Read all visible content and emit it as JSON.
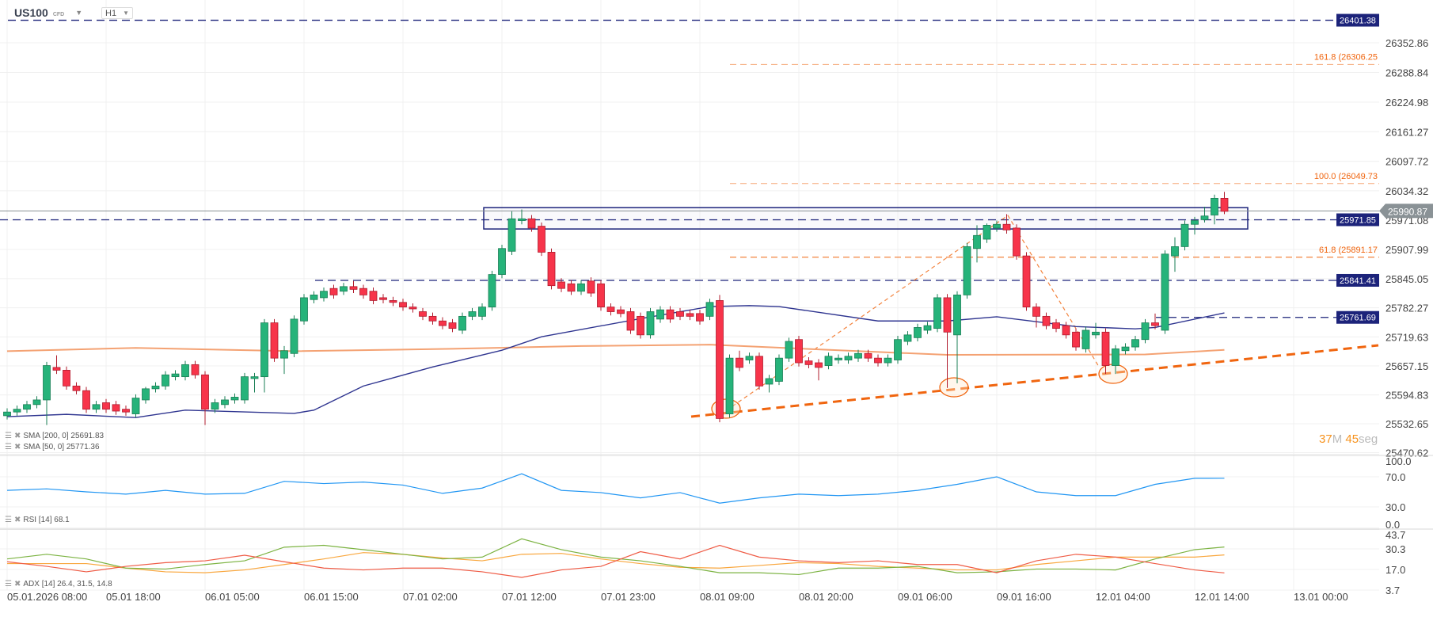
{
  "header": {
    "symbol": "US100",
    "symbol_type": "CFD",
    "timeframe": "H1"
  },
  "timer": {
    "minutes": "37",
    "minutes_unit": "M",
    "seconds": "45",
    "seconds_unit": "seg"
  },
  "indicators": {
    "sma200": "SMA [200, 0] 25691.83",
    "sma50": "SMA [50, 0] 25771.36",
    "rsi": "RSI [14] 68.1",
    "adx": "ADX [14] 26.4, 31.5, 14.8"
  },
  "colors": {
    "bull": "#26b37a",
    "bear": "#f7344a",
    "sma50": "#2f3590",
    "sma200": "#f4a273",
    "fib": "#f0650f",
    "level": "#1c237a",
    "rsi": "#2196f3",
    "adx": "#f9a73e",
    "plus_di": "#7cb342",
    "minus_di": "#ef5b45"
  },
  "chart_data": [
    {
      "type": "candlestick",
      "price_axis": {
        "ticks": [
          26352.86,
          26288.84,
          26224.98,
          26161.27,
          26097.72,
          26034.32,
          25971.08,
          25907.99,
          25845.05,
          25782.27,
          25719.63,
          25657.15,
          25594.83,
          25532.65,
          25470.62
        ]
      },
      "time_axis": {
        "ticks": [
          "05.01.2026  08:00",
          "05.01  18:00",
          "06.01  05:00",
          "06.01  15:00",
          "07.01  02:00",
          "07.01  12:00",
          "07.01  23:00",
          "08.01  09:00",
          "08.01  20:00",
          "09.01  06:00",
          "09.01  16:00",
          "12.01  04:00",
          "12.01  14:00",
          "13.01  00:00"
        ]
      },
      "current_price": "25990.87",
      "levels": [
        {
          "label": "26401.38",
          "price": 26401.38
        },
        {
          "label": "25971.85",
          "price": 25971.85
        },
        {
          "label": "25841.41",
          "price": 25841.41
        },
        {
          "label": "25761.69",
          "price": 25761.69
        }
      ],
      "fib": [
        {
          "label": "161.8 (26306.25",
          "price": 26306.25
        },
        {
          "label": "100.0 (26049.73",
          "price": 26049.73
        },
        {
          "label": "61.8 (25891.17",
          "price": 25891.17
        }
      ],
      "ohlc": [
        [
          25550,
          25566,
          25542,
          25558
        ],
        [
          25558,
          25572,
          25550,
          25564
        ],
        [
          25564,
          25582,
          25556,
          25574
        ],
        [
          25574,
          25592,
          25566,
          25584
        ],
        [
          25584,
          25666,
          25530,
          25658
        ],
        [
          25654,
          25680,
          25640,
          25648
        ],
        [
          25648,
          25656,
          25606,
          25614
        ],
        [
          25614,
          25622,
          25596,
          25604
        ],
        [
          25604,
          25612,
          25556,
          25564
        ],
        [
          25564,
          25582,
          25556,
          25574
        ],
        [
          25578,
          25586,
          25556,
          25564
        ],
        [
          25574,
          25582,
          25552,
          25560
        ],
        [
          25564,
          25572,
          25550,
          25558
        ],
        [
          25554,
          25596,
          25546,
          25588
        ],
        [
          25584,
          25612,
          25576,
          25608
        ],
        [
          25608,
          25622,
          25600,
          25614
        ],
        [
          25614,
          25646,
          25606,
          25638
        ],
        [
          25634,
          25648,
          25626,
          25640
        ],
        [
          25634,
          25668,
          25626,
          25660
        ],
        [
          25660,
          25668,
          25630,
          25638
        ],
        [
          25638,
          25646,
          25530,
          25564
        ],
        [
          25564,
          25586,
          25556,
          25578
        ],
        [
          25574,
          25592,
          25566,
          25584
        ],
        [
          25584,
          25598,
          25576,
          25590
        ],
        [
          25584,
          25642,
          25576,
          25634
        ],
        [
          25630,
          25642,
          25600,
          25634
        ],
        [
          25634,
          25758,
          25600,
          25750
        ],
        [
          25750,
          25758,
          25666,
          25674
        ],
        [
          25674,
          25700,
          25640,
          25690
        ],
        [
          25684,
          25766,
          25676,
          25758
        ],
        [
          25754,
          25812,
          25746,
          25804
        ],
        [
          25800,
          25818,
          25792,
          25810
        ],
        [
          25804,
          25826,
          25796,
          25818
        ],
        [
          25824,
          25832,
          25802,
          25810
        ],
        [
          25818,
          25836,
          25810,
          25828
        ],
        [
          25828,
          25840,
          25814,
          25822
        ],
        [
          25824,
          25832,
          25802,
          25810
        ],
        [
          25818,
          25826,
          25790,
          25798
        ],
        [
          25804,
          25812,
          25792,
          25800
        ],
        [
          25798,
          25806,
          25786,
          25794
        ],
        [
          25794,
          25802,
          25776,
          25784
        ],
        [
          25784,
          25792,
          25772,
          25780
        ],
        [
          25774,
          25782,
          25756,
          25764
        ],
        [
          25764,
          25772,
          25746,
          25754
        ],
        [
          25754,
          25762,
          25736,
          25744
        ],
        [
          25750,
          25758,
          25730,
          25738
        ],
        [
          25734,
          25772,
          25726,
          25764
        ],
        [
          25764,
          25782,
          25756,
          25774
        ],
        [
          25764,
          25792,
          25756,
          25784
        ],
        [
          25784,
          25862,
          25776,
          25854
        ],
        [
          25854,
          25918,
          25846,
          25910
        ],
        [
          25904,
          25990,
          25896,
          25974
        ],
        [
          25970,
          25994,
          25962,
          25974
        ],
        [
          25974,
          25982,
          25946,
          25954
        ],
        [
          25958,
          25966,
          25894,
          25902
        ],
        [
          25902,
          25910,
          25822,
          25830
        ],
        [
          25838,
          25846,
          25816,
          25824
        ],
        [
          25834,
          25842,
          25810,
          25818
        ],
        [
          25818,
          25842,
          25810,
          25834
        ],
        [
          25840,
          25848,
          25806,
          25814
        ],
        [
          25834,
          25842,
          25776,
          25784
        ],
        [
          25784,
          25792,
          25766,
          25774
        ],
        [
          25778,
          25786,
          25762,
          25770
        ],
        [
          25774,
          25782,
          25726,
          25734
        ],
        [
          25764,
          25772,
          25716,
          25724
        ],
        [
          25724,
          25782,
          25716,
          25774
        ],
        [
          25758,
          25786,
          25750,
          25778
        ],
        [
          25778,
          25786,
          25750,
          25758
        ],
        [
          25774,
          25782,
          25756,
          25764
        ],
        [
          25770,
          25778,
          25756,
          25764
        ],
        [
          25770,
          25778,
          25746,
          25754
        ],
        [
          25764,
          25802,
          25756,
          25794
        ],
        [
          25798,
          25810,
          25536,
          25544
        ],
        [
          25554,
          25682,
          25546,
          25674
        ],
        [
          25674,
          25690,
          25646,
          25654
        ],
        [
          25670,
          25686,
          25662,
          25678
        ],
        [
          25678,
          25686,
          25606,
          25614
        ],
        [
          25618,
          25638,
          25600,
          25630
        ],
        [
          25624,
          25682,
          25616,
          25674
        ],
        [
          25674,
          25718,
          25666,
          25710
        ],
        [
          25714,
          25722,
          25656,
          25664
        ],
        [
          25668,
          25676,
          25652,
          25660
        ],
        [
          25664,
          25672,
          25626,
          25654
        ],
        [
          25658,
          25686,
          25650,
          25678
        ],
        [
          25670,
          25682,
          25662,
          25674
        ],
        [
          25670,
          25686,
          25662,
          25678
        ],
        [
          25674,
          25692,
          25666,
          25684
        ],
        [
          25684,
          25692,
          25666,
          25674
        ],
        [
          25674,
          25682,
          25656,
          25664
        ],
        [
          25664,
          25682,
          25656,
          25674
        ],
        [
          25670,
          25722,
          25662,
          25714
        ],
        [
          25710,
          25732,
          25702,
          25724
        ],
        [
          25718,
          25748,
          25710,
          25740
        ],
        [
          25734,
          25752,
          25726,
          25744
        ],
        [
          25738,
          25812,
          25730,
          25804
        ],
        [
          25804,
          25812,
          25610,
          25730
        ],
        [
          25724,
          25818,
          25620,
          25810
        ],
        [
          25810,
          25922,
          25802,
          25914
        ],
        [
          25910,
          25960,
          25880,
          25938
        ],
        [
          25930,
          25964,
          25922,
          25960
        ],
        [
          25954,
          25970,
          25946,
          25962
        ],
        [
          25962,
          25984,
          25942,
          25950
        ],
        [
          25954,
          25962,
          25886,
          25894
        ],
        [
          25894,
          25902,
          25776,
          25784
        ],
        [
          25784,
          25792,
          25740,
          25764
        ],
        [
          25764,
          25772,
          25736,
          25744
        ],
        [
          25750,
          25758,
          25730,
          25738
        ],
        [
          25744,
          25752,
          25716,
          25724
        ],
        [
          25730,
          25738,
          25690,
          25698
        ],
        [
          25694,
          25742,
          25686,
          25734
        ],
        [
          25724,
          25750,
          25716,
          25730
        ],
        [
          25730,
          25738,
          25640,
          25658
        ],
        [
          25658,
          25702,
          25640,
          25694
        ],
        [
          25690,
          25706,
          25682,
          25698
        ],
        [
          25698,
          25722,
          25690,
          25714
        ],
        [
          25714,
          25758,
          25706,
          25750
        ],
        [
          25750,
          25770,
          25736,
          25744
        ],
        [
          25734,
          25906,
          25726,
          25898
        ],
        [
          25894,
          25934,
          25860,
          25914
        ],
        [
          25914,
          25970,
          25906,
          25962
        ],
        [
          25962,
          25978,
          25940,
          25970
        ],
        [
          25972,
          26000,
          25966,
          25980
        ],
        [
          25982,
          26026,
          25962,
          26018
        ],
        [
          26018,
          26032,
          25984,
          25990
        ]
      ],
      "sma200": {
        "bar": [
          0,
          13,
          29,
          45,
          58,
          71,
          85,
          95,
          115,
          123
        ],
        "values": [
          25689,
          25696,
          25689,
          25694,
          25700,
          25703,
          25690,
          25681,
          25682,
          25691.83
        ]
      },
      "sma50": {
        "bar": [
          0,
          6,
          13,
          18,
          29,
          31,
          36,
          43,
          50,
          54,
          64,
          71,
          75,
          78,
          88,
          95,
          100,
          108,
          114,
          116,
          123
        ],
        "values": [
          25548,
          25553,
          25546,
          25562,
          25555,
          25562,
          25614,
          25655,
          25691,
          25720,
          25759,
          25785,
          25787,
          25785,
          25754,
          25754,
          25763,
          25742,
          25737,
          25740,
          25771.36
        ]
      }
    },
    {
      "type": "line",
      "name": "RSI [14]",
      "ylim": [
        0,
        100
      ],
      "ticks": [
        100.0,
        70.0,
        30.0,
        0.0
      ],
      "bar": [
        0,
        4,
        8,
        12,
        16,
        20,
        24,
        28,
        32,
        36,
        40,
        44,
        48,
        52,
        56,
        60,
        64,
        68,
        72,
        76,
        80,
        84,
        88,
        92,
        96,
        100,
        104,
        108,
        112,
        116,
        120,
        123
      ],
      "values": [
        52,
        54,
        50,
        47,
        52,
        47,
        48,
        64,
        61,
        63,
        59,
        48,
        55,
        74,
        52,
        49,
        42,
        49,
        35,
        42,
        47,
        45,
        47,
        52,
        60,
        70,
        50,
        45,
        45,
        60,
        68,
        68.1
      ]
    },
    {
      "type": "line",
      "name": "ADX [14]",
      "ticks": [
        43.7,
        30.3,
        17.0,
        3.7
      ],
      "bar": [
        0,
        4,
        8,
        12,
        16,
        20,
        24,
        28,
        32,
        36,
        40,
        44,
        48,
        52,
        56,
        60,
        64,
        68,
        72,
        76,
        80,
        84,
        88,
        92,
        96,
        100,
        104,
        108,
        112,
        116,
        120,
        123
      ],
      "adx": [
        20.8,
        20.8,
        20.8,
        17.9,
        15.5,
        14.9,
        16.7,
        20.2,
        23.8,
        27.9,
        26.8,
        24.4,
        22.6,
        26.8,
        27.4,
        23.8,
        20.8,
        18.4,
        17.9,
        19.6,
        21.4,
        20.8,
        19,
        17.9,
        16.7,
        16.7,
        20.2,
        22.6,
        25,
        25,
        25,
        26.4
      ],
      "plus_di": [
        23.8,
        26.8,
        23.8,
        17.9,
        17.3,
        20.2,
        22.6,
        31.4,
        32.6,
        29.8,
        26.8,
        23.8,
        25,
        36.8,
        29.8,
        25,
        22.6,
        19,
        14.9,
        14.9,
        13.7,
        17.9,
        17.9,
        19,
        14.9,
        15.5,
        17.3,
        17.3,
        16.7,
        23.8,
        29.8,
        31.5
      ],
      "minus_di": [
        22,
        19,
        15.5,
        19,
        21.4,
        22.6,
        26.2,
        22,
        17.9,
        16.7,
        17.9,
        17.9,
        15.5,
        11.9,
        16.7,
        19,
        28.5,
        23.8,
        32.6,
        25,
        22.6,
        21.4,
        22.6,
        20.2,
        20.2,
        14.9,
        22.6,
        26.8,
        25,
        20.8,
        16.7,
        14.8
      ]
    }
  ]
}
